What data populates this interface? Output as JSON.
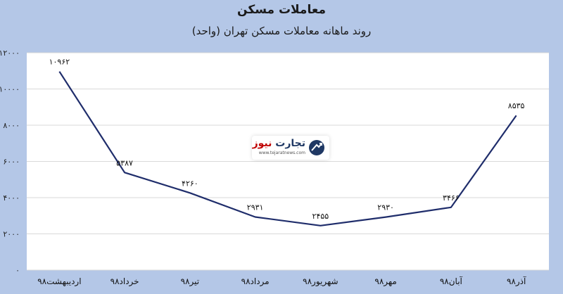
{
  "title": "معاملات مسکن",
  "subtitle": "روند ماهانه معاملات مسکن تهران (واحد)",
  "watermark": {
    "main": "تجارت",
    "accent": "نیوز",
    "url": "www.tejaratnews.com",
    "icon": "globe-arrow-icon"
  },
  "chart_data": {
    "type": "line",
    "title": "معاملات مسکن",
    "subtitle": "روند ماهانه معاملات مسکن تهران (واحد)",
    "categories": [
      "اردیبهشت۹۸",
      "خرداد۹۸",
      "تیر۹۸",
      "مرداد۹۸",
      "شهریور۹۸",
      "مهر۹۸",
      "آبان۹۸",
      "آذر۹۸"
    ],
    "data_labels": [
      "۱۰۹۶۲",
      "۵۳۸۷",
      "۴۲۶۰",
      "۲۹۳۱",
      "۲۴۵۵",
      "۲۹۳۰",
      "۳۴۶۶",
      "۸۵۳۵"
    ],
    "series": [
      {
        "values": [
          10962,
          5387,
          4260,
          2931,
          2455,
          2930,
          3466,
          8535
        ]
      }
    ],
    "ylim": [
      0,
      12000
    ],
    "yticks": [
      0,
      2000,
      4000,
      6000,
      8000,
      10000,
      12000
    ],
    "ytick_labels": [
      "۰",
      "۲۰۰۰",
      "۴۰۰۰",
      "۶۰۰۰",
      "۸۰۰۰",
      "۱۰۰۰۰",
      "۱۲۰۰۰"
    ],
    "grid": true,
    "legend": "none",
    "colors": {
      "line": "#1f2d6b",
      "grid": "#d9d9d9",
      "plot_bg": "#ffffff",
      "page_bg": "#b4c7e7"
    }
  }
}
